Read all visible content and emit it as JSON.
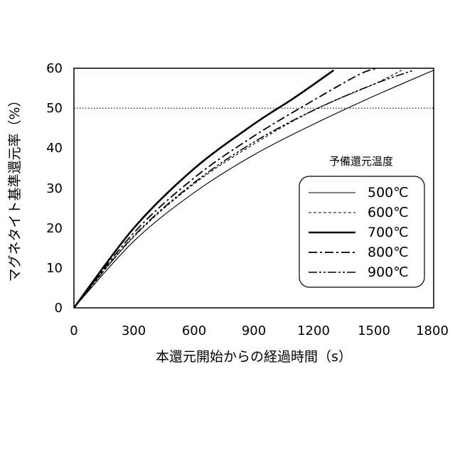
{
  "chart_data": {
    "type": "line",
    "xlabel": "本還元開始からの経過時間（s）",
    "ylabel": "マグネタイト基準還元率（%）",
    "xlim": [
      0,
      1800
    ],
    "ylim": [
      0,
      60
    ],
    "xticks": [
      "0",
      "300",
      "600",
      "900",
      "1200",
      "1500",
      "1800"
    ],
    "yticks": [
      "0",
      "10",
      "20",
      "30",
      "40",
      "50",
      "60"
    ],
    "reference_line": {
      "y": 50,
      "style": "dotted"
    },
    "legend": {
      "title": "予備還元温度",
      "placement": "bottom-right"
    },
    "series": [
      {
        "name": "500℃",
        "style": "solid-thin",
        "points": [
          [
            0,
            0
          ],
          [
            300,
            16.7
          ],
          [
            600,
            28.8
          ],
          [
            900,
            38.3
          ],
          [
            1200,
            46.0
          ],
          [
            1500,
            53.0
          ],
          [
            1800,
            59.5
          ]
        ]
      },
      {
        "name": "600℃",
        "style": "dashed",
        "points": [
          [
            0,
            0
          ],
          [
            300,
            17.8
          ],
          [
            600,
            31.0
          ],
          [
            900,
            41.0
          ],
          [
            1200,
            49.5
          ],
          [
            1500,
            56.0
          ],
          [
            1640,
            59.5
          ]
        ]
      },
      {
        "name": "700℃",
        "style": "solid-thick",
        "points": [
          [
            0,
            0
          ],
          [
            300,
            20.0
          ],
          [
            600,
            34.8
          ],
          [
            900,
            46.0
          ],
          [
            1100,
            52.5
          ],
          [
            1300,
            59.5
          ]
        ]
      },
      {
        "name": "800℃",
        "style": "dash-dot",
        "points": [
          [
            0,
            0
          ],
          [
            300,
            18.8
          ],
          [
            600,
            32.5
          ],
          [
            900,
            43.0
          ],
          [
            1200,
            52.0
          ],
          [
            1430,
            58.5
          ],
          [
            1520,
            60.0
          ]
        ]
      },
      {
        "name": "900℃",
        "style": "dash-dot-dot",
        "points": [
          [
            0,
            0
          ],
          [
            300,
            18.0
          ],
          [
            600,
            31.3
          ],
          [
            900,
            41.5
          ],
          [
            1200,
            49.5
          ],
          [
            1500,
            56.0
          ],
          [
            1700,
            59.5
          ]
        ]
      }
    ]
  }
}
